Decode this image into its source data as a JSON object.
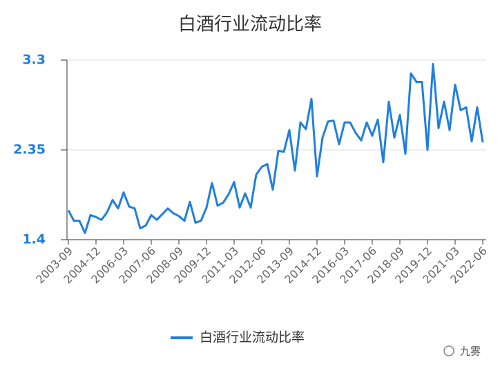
{
  "chart_data": {
    "type": "line",
    "title": "白酒行业流动比率",
    "categories": [
      "2003-09",
      null,
      null,
      null,
      null,
      "2004-12",
      null,
      null,
      null,
      null,
      "2006-03",
      null,
      null,
      null,
      null,
      "2007-06",
      null,
      null,
      null,
      null,
      "2008-09",
      null,
      null,
      null,
      null,
      "2009-12",
      null,
      null,
      null,
      null,
      "2011-03",
      null,
      null,
      null,
      null,
      "2012-06",
      null,
      null,
      null,
      null,
      "2013-09",
      null,
      null,
      null,
      null,
      "2014-12",
      null,
      null,
      null,
      null,
      "2016-03",
      null,
      null,
      null,
      null,
      "2017-06",
      null,
      null,
      null,
      null,
      "2018-09",
      null,
      null,
      null,
      null,
      "2019-12",
      null,
      null,
      null,
      null,
      "2021-03",
      null,
      null,
      null,
      null,
      "2022-06"
    ],
    "series": [
      {
        "name": "白酒行业流动比率",
        "color": "#1f7fe0",
        "values": [
          1.71,
          1.6,
          1.6,
          1.47,
          1.66,
          1.64,
          1.61,
          1.69,
          1.82,
          1.73,
          1.9,
          1.75,
          1.73,
          1.52,
          1.55,
          1.66,
          1.61,
          1.67,
          1.73,
          1.68,
          1.65,
          1.6,
          1.8,
          1.58,
          1.6,
          1.74,
          2.0,
          1.76,
          1.79,
          1.88,
          2.01,
          1.74,
          1.89,
          1.74,
          2.09,
          2.17,
          2.2,
          1.93,
          2.34,
          2.33,
          2.56,
          2.13,
          2.64,
          2.57,
          2.89,
          2.07,
          2.48,
          2.65,
          2.66,
          2.41,
          2.64,
          2.64,
          2.53,
          2.45,
          2.64,
          2.5,
          2.67,
          2.22,
          2.86,
          2.48,
          2.72,
          2.31,
          3.16,
          3.07,
          3.07,
          2.35,
          3.26,
          2.58,
          2.86,
          2.56,
          3.04,
          2.77,
          2.8,
          2.44,
          2.8,
          2.43
        ]
      }
    ],
    "ylim": [
      1.4,
      3.3
    ],
    "yticks": [
      1.4,
      2.35,
      3.3
    ],
    "grid": true,
    "legend": "bottom",
    "watermark": "九雾"
  }
}
